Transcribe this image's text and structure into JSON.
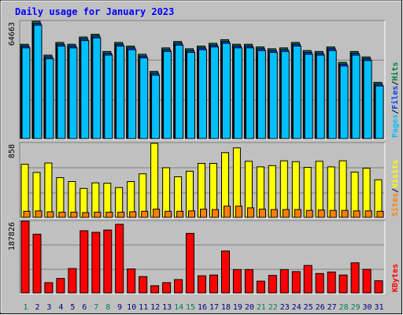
{
  "title": "Daily usage for January 2023",
  "colors": {
    "background": "#c0c0c0",
    "title": "#0000ff",
    "hits": "#008040",
    "files": "#0040ff",
    "pages": "#00c0ff",
    "visits": "#ffff00",
    "sites": "#ff8000",
    "kbytes": "#ff0000",
    "weekend_day": "#00805c",
    "weekday": "#000080"
  },
  "chart_data": [
    {
      "type": "bar",
      "panel": "hits-files-pages",
      "ymax_label": "64663",
      "ylim": [
        0,
        64663
      ],
      "legend": [
        {
          "text": "Pages",
          "color_key": "pages"
        },
        {
          "text": "/",
          "color_key": "separator"
        },
        {
          "text": "Files",
          "color_key": "files"
        },
        {
          "text": "/",
          "color_key": "separator"
        },
        {
          "text": "Hits",
          "color_key": "hits"
        }
      ],
      "series": [
        {
          "name": "Hits",
          "values": [
            52000,
            64663,
            46000,
            53000,
            52000,
            56000,
            57500,
            48000,
            53000,
            51000,
            46500,
            37000,
            50000,
            53500,
            49500,
            51000,
            52500,
            54500,
            52000,
            52000,
            50500,
            49500,
            50000,
            53000,
            48500,
            48000,
            50500,
            42000,
            48000,
            45000,
            31000
          ]
        },
        {
          "name": "Files",
          "values": [
            51000,
            63500,
            45000,
            52000,
            51000,
            55000,
            56500,
            47000,
            52000,
            50000,
            45500,
            36000,
            49000,
            52500,
            48500,
            50000,
            51500,
            53500,
            51000,
            51000,
            49500,
            48500,
            49000,
            52000,
            47500,
            47000,
            49500,
            41000,
            47000,
            44000,
            30000
          ]
        },
        {
          "name": "Pages",
          "values": [
            50000,
            62500,
            44000,
            51000,
            50000,
            54000,
            55500,
            46000,
            51000,
            49000,
            44500,
            35000,
            48000,
            51500,
            47500,
            49000,
            50500,
            52500,
            50000,
            50000,
            48500,
            47500,
            48000,
            51000,
            46500,
            46000,
            48500,
            40000,
            46000,
            43000,
            29000
          ]
        }
      ]
    },
    {
      "type": "bar",
      "panel": "visits-sites",
      "ymax_label": "858",
      "ylim": [
        0,
        858
      ],
      "legend": [
        {
          "text": "Sites",
          "color_key": "sites"
        },
        {
          "text": "/",
          "color_key": "separator"
        },
        {
          "text": "Visits",
          "color_key": "visits"
        }
      ],
      "series": [
        {
          "name": "Visits",
          "values": [
            615,
            520,
            630,
            460,
            415,
            335,
            400,
            395,
            345,
            415,
            505,
            858,
            575,
            470,
            535,
            625,
            625,
            750,
            805,
            650,
            585,
            600,
            655,
            645,
            580,
            650,
            585,
            655,
            525,
            570,
            435
          ]
        },
        {
          "name": "Sites",
          "values": [
            70,
            75,
            65,
            60,
            60,
            55,
            60,
            60,
            60,
            65,
            70,
            95,
            70,
            70,
            75,
            95,
            90,
            130,
            130,
            110,
            95,
            90,
            90,
            90,
            80,
            85,
            80,
            80,
            75,
            75,
            70
          ]
        }
      ]
    },
    {
      "type": "bar",
      "panel": "kbytes",
      "ymax_label": "187826",
      "ylim": [
        0,
        187826
      ],
      "legend": [
        {
          "text": "KBytes",
          "color_key": "kbytes"
        }
      ],
      "series": [
        {
          "name": "KBytes",
          "values": [
            187826,
            154000,
            27000,
            38000,
            64000,
            163000,
            159000,
            165000,
            180000,
            63000,
            43000,
            19000,
            27000,
            35000,
            156000,
            45000,
            47000,
            110000,
            61000,
            61000,
            31000,
            46000,
            61000,
            56000,
            72000,
            51000,
            55000,
            47000,
            79000,
            62000,
            32000
          ]
        }
      ]
    }
  ],
  "x_axis": {
    "labels": [
      "1",
      "2",
      "3",
      "4",
      "5",
      "6",
      "7",
      "8",
      "9",
      "10",
      "11",
      "12",
      "13",
      "14",
      "15",
      "16",
      "17",
      "18",
      "19",
      "20",
      "21",
      "22",
      "23",
      "24",
      "25",
      "26",
      "27",
      "28",
      "29",
      "30",
      "31"
    ],
    "weekend_days": [
      1,
      7,
      8,
      14,
      15,
      21,
      22,
      28,
      29
    ]
  }
}
